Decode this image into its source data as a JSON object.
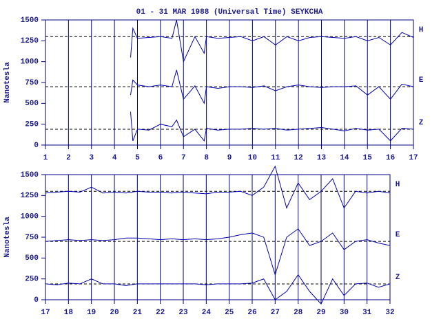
{
  "chart_data": [
    {
      "type": "line",
      "title": "01 - 31 MAR 1988 (Universal Time) SEYKCHA",
      "y_label": "Nanotesla",
      "xlim": [
        1,
        17
      ],
      "xticks": [
        1,
        2,
        3,
        4,
        5,
        6,
        7,
        8,
        9,
        10,
        11,
        12,
        13,
        14,
        15,
        16,
        17
      ],
      "ylim": [
        0,
        1500
      ],
      "yticks": [
        0,
        250,
        500,
        750,
        1000,
        1250,
        1500
      ],
      "grid": true,
      "x": [
        4.7,
        4.8,
        5,
        5.5,
        6,
        6.5,
        6.7,
        7,
        7.5,
        7.9,
        8,
        8.5,
        9,
        9.5,
        10,
        10.5,
        11,
        11.5,
        12,
        12.5,
        13,
        13.5,
        14,
        14.5,
        15,
        15.5,
        16,
        16.5,
        17
      ],
      "series": [
        {
          "name": "H",
          "color": "#0000a8",
          "baseline": 1300,
          "values": [
            1050,
            1400,
            1280,
            1290,
            1300,
            1280,
            1500,
            1000,
            1300,
            1100,
            1300,
            1280,
            1290,
            1300,
            1250,
            1300,
            1200,
            1300,
            1250,
            1290,
            1300,
            1290,
            1280,
            1300,
            1250,
            1290,
            1200,
            1350,
            1290
          ]
        },
        {
          "name": "E",
          "color": "#0000a8",
          "baseline": 700,
          "values": [
            600,
            780,
            720,
            700,
            720,
            700,
            900,
            550,
            710,
            500,
            700,
            680,
            700,
            700,
            690,
            710,
            650,
            700,
            720,
            700,
            690,
            700,
            700,
            710,
            600,
            700,
            550,
            730,
            700
          ]
        },
        {
          "name": "Z",
          "color": "#0000a8",
          "baseline": 190,
          "values": [
            400,
            50,
            190,
            180,
            250,
            220,
            300,
            100,
            190,
            50,
            200,
            180,
            190,
            190,
            200,
            190,
            200,
            180,
            190,
            200,
            210,
            190,
            170,
            200,
            180,
            190,
            50,
            200,
            190
          ]
        }
      ]
    },
    {
      "type": "line",
      "y_label": "Nanotesla",
      "xlim": [
        17,
        32
      ],
      "xticks": [
        17,
        18,
        19,
        20,
        21,
        22,
        23,
        24,
        25,
        26,
        27,
        28,
        29,
        30,
        31,
        32
      ],
      "ylim": [
        0,
        1500
      ],
      "yticks": [
        0,
        250,
        500,
        750,
        1000,
        1250,
        1500
      ],
      "grid": true,
      "x": [
        17,
        17.5,
        18,
        18.5,
        19,
        19.5,
        20,
        20.5,
        21,
        21.5,
        22,
        22.5,
        23,
        23.5,
        24,
        24.5,
        25,
        25.5,
        26,
        26.5,
        27,
        27.5,
        28,
        28.5,
        29,
        29.5,
        30,
        30.5,
        31,
        31.5,
        32
      ],
      "series": [
        {
          "name": "H",
          "color": "#0000a8",
          "baseline": 1300,
          "values": [
            1280,
            1290,
            1300,
            1290,
            1350,
            1280,
            1290,
            1280,
            1300,
            1290,
            1290,
            1280,
            1290,
            1280,
            1270,
            1290,
            1290,
            1300,
            1250,
            1350,
            1600,
            1100,
            1400,
            1200,
            1300,
            1450,
            1100,
            1300,
            1280,
            1300,
            1280
          ]
        },
        {
          "name": "E",
          "color": "#0000a8",
          "baseline": 700,
          "values": [
            700,
            710,
            720,
            710,
            720,
            710,
            720,
            740,
            740,
            730,
            720,
            730,
            720,
            730,
            720,
            730,
            750,
            780,
            800,
            750,
            300,
            750,
            850,
            650,
            700,
            800,
            600,
            700,
            720,
            680,
            650
          ]
        },
        {
          "name": "Z",
          "color": "#0000a8",
          "baseline": 190,
          "values": [
            190,
            180,
            200,
            190,
            250,
            190,
            190,
            170,
            190,
            190,
            190,
            190,
            190,
            190,
            180,
            190,
            190,
            190,
            200,
            250,
            0,
            100,
            300,
            100,
            -50,
            250,
            50,
            190,
            200,
            150,
            190
          ]
        }
      ]
    }
  ]
}
